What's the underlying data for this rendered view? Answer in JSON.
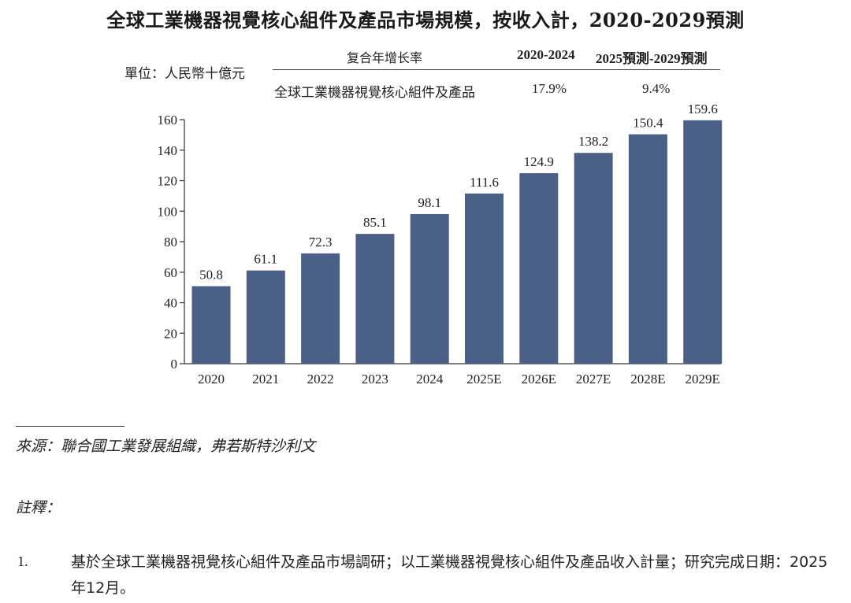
{
  "title": "全球工業機器視覺核心組件及產品市場規模，按收入計，2020-2029預測",
  "unit_label": "單位：人民幣十億元",
  "cagr": {
    "header": "复合年增长率",
    "period1": "2020-2024",
    "period2": "2025預測-2029預測",
    "row_name": "全球工業機器視覺核心組件及產品",
    "value1": "17.9%",
    "value2": "9.4%"
  },
  "chart_data": {
    "type": "bar",
    "categories": [
      "2020",
      "2021",
      "2022",
      "2023",
      "2024",
      "2025E",
      "2026E",
      "2027E",
      "2028E",
      "2029E"
    ],
    "values": [
      50.8,
      61.1,
      72.3,
      85.1,
      98.1,
      111.6,
      124.9,
      138.2,
      150.4,
      159.6
    ],
    "value_labels": [
      "50.8",
      "61.1",
      "72.3",
      "85.1",
      "98.1",
      "111.6",
      "124.9",
      "138.2",
      "150.4",
      "159.6"
    ],
    "yticks": [
      "0",
      "20",
      "40",
      "60",
      "80",
      "100",
      "120",
      "140",
      "160"
    ],
    "ylim": [
      0,
      160
    ],
    "ylabel": "單位：人民幣十億元",
    "xlabel": "",
    "bar_color": "#4a6086",
    "grid": false
  },
  "source": "來源：聯合國工業發展組織，弗若斯特沙利文",
  "notes_title": "註釋：",
  "notes": [
    {
      "num": "1.",
      "text": "基於全球工業機器視覺核心組件及產品市場調研；以工業機器視覺核心組件及產品收入計量；研究完成日期：2025年12月。"
    }
  ]
}
